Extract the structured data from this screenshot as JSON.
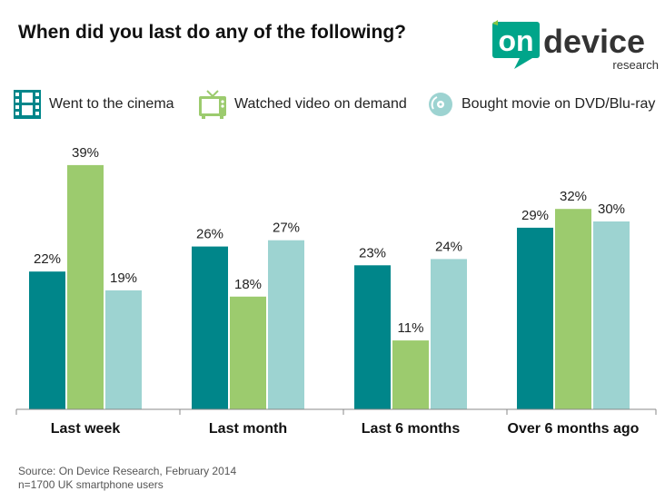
{
  "header": {
    "title": "When did you last do any of the following?",
    "logo_text_main_a": "on",
    "logo_text_main_b": "device",
    "logo_text_sub": "research"
  },
  "legend": [
    {
      "label": "Went to the cinema",
      "icon": "film-strip-icon",
      "color": "#00868a"
    },
    {
      "label": "Watched video on demand",
      "icon": "tv-icon",
      "color": "#9ccb6e"
    },
    {
      "label": "Bought movie on DVD/Blu-ray",
      "icon": "disc-icon",
      "color": "#9dd3d1"
    }
  ],
  "colors": {
    "cinema": "#00868a",
    "vod": "#9ccb6e",
    "dvd": "#9dd3d1",
    "logo": "#00a58a",
    "logo_accent": "#8cc63f"
  },
  "chart_data": {
    "type": "bar",
    "title": "When did you last do any of the following?",
    "categories": [
      "Last week",
      "Last month",
      "Last 6 months",
      "Over 6 months ago"
    ],
    "series": [
      {
        "name": "Went to the cinema",
        "values": [
          22,
          26,
          23,
          29
        ]
      },
      {
        "name": "Watched video on demand",
        "values": [
          39,
          18,
          11,
          32
        ]
      },
      {
        "name": "Bought movie on DVD/Blu-ray",
        "values": [
          19,
          27,
          24,
          30
        ]
      }
    ],
    "value_suffix": "%",
    "ylim": [
      0,
      40
    ],
    "grid": false,
    "legend_position": "top"
  },
  "footer": {
    "source": "Source: On Device Research, February 2014",
    "sample": "n=1700 UK smartphone users"
  }
}
